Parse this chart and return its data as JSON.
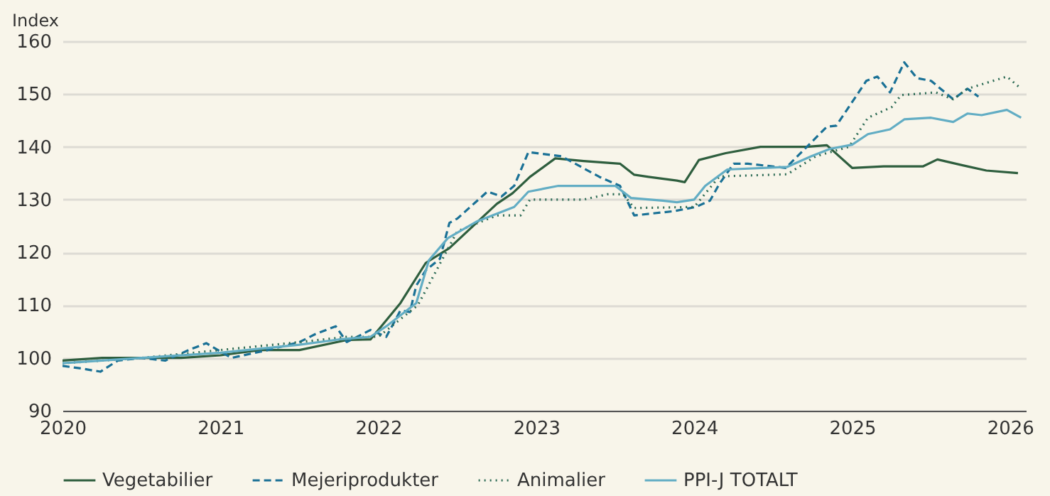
{
  "chart_data": {
    "type": "line",
    "ylabel": "Index",
    "xlim": [
      2020,
      2026.1
    ],
    "xticks": [
      2020,
      2021,
      2022,
      2023,
      2024,
      2025,
      2026
    ],
    "ylim": [
      90,
      160
    ],
    "yticks": [
      90,
      100,
      110,
      120,
      130,
      140,
      150,
      160
    ],
    "grid": "y",
    "legend": "bottom",
    "series": [
      {
        "name": "Vegetabilier",
        "color": "#2e5e3e",
        "line_style": "solid",
        "x": [
          2020,
          2020.25,
          2020.5,
          2020.75,
          2021,
          2021.25,
          2021.5,
          2021.8,
          2021.95,
          2022.14,
          2022.3,
          2022.45,
          2022.55,
          2022.75,
          2022.85,
          2022.96,
          2023.12,
          2023.3,
          2023.53,
          2023.62,
          2023.71,
          2023.89,
          2023.94,
          2024.03,
          2024.2,
          2024.42,
          2024.71,
          2024.84,
          2025,
          2025.2,
          2025.45,
          2025.54,
          2025.7,
          2025.85,
          2026.05
        ],
        "values": [
          99.5,
          100,
          100,
          100,
          100.5,
          101.5,
          101.5,
          103.4,
          103.5,
          110.4,
          118,
          120.8,
          123.6,
          129.2,
          131.2,
          134.3,
          137.8,
          137.3,
          136.8,
          134.7,
          134.3,
          133.6,
          133.3,
          137.5,
          138.8,
          140,
          140,
          140.3,
          136,
          136.3,
          136.3,
          137.6,
          136.5,
          135.5,
          135
        ]
      },
      {
        "name": "Mejeriprodukter",
        "color": "#1a7196",
        "line_style": "dashed",
        "x": [
          2020,
          2020.12,
          2020.24,
          2020.35,
          2020.5,
          2020.65,
          2020.8,
          2020.91,
          2021.07,
          2021.3,
          2021.5,
          2021.6,
          2021.73,
          2021.8,
          2021.95,
          2022.05,
          2022.14,
          2022.2,
          2022.24,
          2022.3,
          2022.39,
          2022.45,
          2022.5,
          2022.69,
          2022.78,
          2022.86,
          2022.95,
          2023.16,
          2023.4,
          2023.53,
          2023.62,
          2023.87,
          2024.01,
          2024.1,
          2024.16,
          2024.25,
          2024.34,
          2024.58,
          2024.84,
          2024.9,
          2025.09,
          2025.16,
          2025.24,
          2025.33,
          2025.41,
          2025.5,
          2025.64,
          2025.73,
          2025.8
        ],
        "values": [
          98.5,
          98,
          97.4,
          99.5,
          100,
          99.5,
          101.5,
          102.8,
          100,
          101.5,
          103,
          104.5,
          106,
          103,
          105.3,
          104,
          109,
          108.7,
          113.7,
          116.6,
          118.8,
          125.6,
          126.4,
          131.5,
          130.6,
          132.6,
          139,
          138.2,
          134.3,
          132.6,
          127,
          127.8,
          128.6,
          129.8,
          133,
          136.8,
          136.8,
          136,
          143.8,
          144,
          152.5,
          153.3,
          150.3,
          156,
          153,
          152.5,
          149,
          151,
          149.5
        ]
      },
      {
        "name": "Animalier",
        "color": "#2d6b55",
        "line_style": "dotted",
        "x": [
          2020,
          2020.5,
          2021,
          2021.5,
          2021.8,
          2022,
          2022.25,
          2022.5,
          2022.75,
          2022.9,
          2022.96,
          2023.3,
          2023.45,
          2023.55,
          2023.62,
          2024,
          2024.16,
          2024.59,
          2024.77,
          2024.98,
          2025.1,
          2025.25,
          2025.31,
          2025.53,
          2025.64,
          2025.73,
          2025.98,
          2026.07
        ],
        "values": [
          99,
          100,
          101.5,
          103,
          104,
          104,
          110,
          124,
          127,
          127,
          130,
          130,
          131,
          131,
          128.4,
          128.6,
          134.4,
          134.8,
          138.2,
          140,
          145.5,
          147.5,
          149.8,
          150.3,
          149,
          151,
          153.3,
          151
        ]
      },
      {
        "name": "PPI-J TOTALT",
        "color": "#62adc4",
        "line_style": "solid",
        "x": [
          2020,
          2020.5,
          2021,
          2021.5,
          2021.75,
          2021.95,
          2022.05,
          2022.24,
          2022.32,
          2022.44,
          2022.62,
          2022.86,
          2022.95,
          2023.14,
          2023.5,
          2023.6,
          2023.8,
          2023.89,
          2024,
          2024.07,
          2024.21,
          2024.59,
          2024.74,
          2024.86,
          2025,
          2025.1,
          2025.24,
          2025.33,
          2025.5,
          2025.64,
          2025.73,
          2025.82,
          2025.98,
          2026.07
        ],
        "values": [
          99,
          100,
          101,
          102.5,
          103.5,
          104,
          106,
          110.4,
          118.5,
          122.7,
          125.8,
          128.6,
          131.5,
          132.6,
          132.6,
          130.3,
          129.8,
          129.5,
          130,
          132.6,
          135.7,
          136.2,
          138.2,
          139.6,
          140.4,
          142.4,
          143.3,
          145.2,
          145.5,
          144.7,
          146.3,
          146,
          147,
          145.5
        ]
      }
    ]
  }
}
